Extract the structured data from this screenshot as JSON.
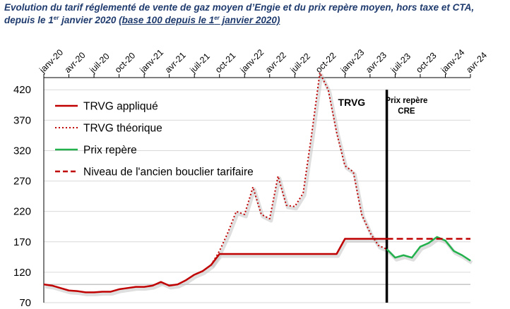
{
  "title": {
    "part1": "Evolution du tarif réglementé de vente de gaz moyen d’Engie et du prix repère moyen, hors taxe et CTA, depuis le 1",
    "sup1": "er",
    "part2": " janvier 2020 ",
    "part3": "(base 100 depuis le 1",
    "sup2": "er",
    "part4": " janvier 2020)"
  },
  "chart_data": {
    "type": "line",
    "x_ticks": [
      "janv-20",
      "avr-20",
      "juil-20",
      "oct-20",
      "janv-21",
      "avr-21",
      "juil-21",
      "oct-21",
      "janv-22",
      "avr-22",
      "juil-22",
      "oct-22",
      "janv-23",
      "avr-23",
      "juil-23",
      "oct-23",
      "janv-24",
      "avr-24"
    ],
    "x_range": [
      "2020-01",
      "2024-04"
    ],
    "y_ticks": [
      70,
      120,
      170,
      220,
      270,
      320,
      370,
      420
    ],
    "ylim": [
      70,
      440
    ],
    "legend_position": "top-left",
    "annotations": [
      {
        "text": "TRVG",
        "at": "2023-04"
      },
      {
        "text_line1": "Prix repère",
        "text_line2": "CRE",
        "at": "2023-07"
      }
    ],
    "divider_at": "2023-06",
    "series": [
      {
        "name": "TRVG appliqué",
        "color": "#c00000",
        "style": "solid",
        "points": [
          [
            "2020-01",
            100
          ],
          [
            "2020-02",
            98
          ],
          [
            "2020-03",
            94
          ],
          [
            "2020-04",
            90
          ],
          [
            "2020-05",
            89
          ],
          [
            "2020-06",
            87
          ],
          [
            "2020-07",
            87
          ],
          [
            "2020-08",
            88
          ],
          [
            "2020-09",
            88
          ],
          [
            "2020-10",
            92
          ],
          [
            "2020-11",
            94
          ],
          [
            "2020-12",
            96
          ],
          [
            "2021-01",
            96
          ],
          [
            "2021-02",
            98
          ],
          [
            "2021-03",
            104
          ],
          [
            "2021-04",
            98
          ],
          [
            "2021-05",
            100
          ],
          [
            "2021-06",
            107
          ],
          [
            "2021-07",
            116
          ],
          [
            "2021-08",
            122
          ],
          [
            "2021-09",
            132
          ],
          [
            "2021-10",
            150
          ],
          [
            "2022-01",
            150
          ],
          [
            "2022-10",
            150
          ],
          [
            "2022-11",
            150
          ],
          [
            "2022-12",
            150
          ],
          [
            "2023-01",
            175
          ],
          [
            "2023-06",
            175
          ]
        ]
      },
      {
        "name": "TRVG théorique",
        "color": "#c00000",
        "style": "dotted",
        "points": [
          [
            "2021-09",
            132
          ],
          [
            "2021-10",
            155
          ],
          [
            "2021-11",
            185
          ],
          [
            "2021-12",
            220
          ],
          [
            "2022-01",
            215
          ],
          [
            "2022-02",
            260
          ],
          [
            "2022-03",
            215
          ],
          [
            "2022-04",
            208
          ],
          [
            "2022-05",
            278
          ],
          [
            "2022-06",
            230
          ],
          [
            "2022-07",
            228
          ],
          [
            "2022-08",
            250
          ],
          [
            "2022-09",
            345
          ],
          [
            "2022-10",
            448
          ],
          [
            "2022-11",
            420
          ],
          [
            "2022-12",
            350
          ],
          [
            "2023-01",
            295
          ],
          [
            "2023-02",
            285
          ],
          [
            "2023-03",
            215
          ],
          [
            "2023-04",
            185
          ],
          [
            "2023-05",
            164
          ],
          [
            "2023-06",
            158
          ]
        ]
      },
      {
        "name": "Prix repère",
        "color": "#22b14c",
        "style": "solid",
        "points": [
          [
            "2023-06",
            158
          ],
          [
            "2023-07",
            144
          ],
          [
            "2023-08",
            148
          ],
          [
            "2023-09",
            144
          ],
          [
            "2023-10",
            162
          ],
          [
            "2023-11",
            168
          ],
          [
            "2023-12",
            178
          ],
          [
            "2024-01",
            172
          ],
          [
            "2024-02",
            155
          ],
          [
            "2024-03",
            148
          ],
          [
            "2024-04",
            139
          ]
        ]
      },
      {
        "name": "Niveau de l'ancien bouclier tarifaire",
        "color": "#c00000",
        "style": "dashed",
        "points": [
          [
            "2023-06",
            175
          ],
          [
            "2024-04",
            175
          ]
        ]
      }
    ]
  }
}
